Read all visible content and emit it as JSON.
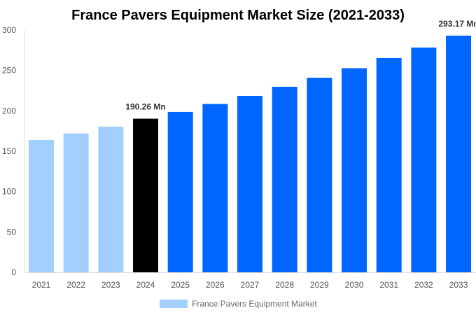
{
  "chart_data": {
    "type": "bar",
    "title": "France Pavers Equipment Market Size (2021-2033)",
    "xlabel": "",
    "ylabel": "",
    "ylim": [
      0,
      300
    ],
    "yticks": [
      0,
      50,
      100,
      150,
      200,
      250,
      300
    ],
    "grid": false,
    "categories": [
      "2021",
      "2022",
      "2023",
      "2024",
      "2025",
      "2026",
      "2027",
      "2028",
      "2029",
      "2030",
      "2031",
      "2032",
      "2033"
    ],
    "series": [
      {
        "name": "France Pavers Equipment Market",
        "values": [
          164,
          172,
          180.5,
          190.26,
          198.6,
          208.5,
          218.5,
          229.8,
          241,
          252.8,
          265.4,
          278.4,
          293.17
        ]
      }
    ],
    "bar_colors": [
      "#a3cfff",
      "#a3cfff",
      "#a3cfff",
      "#000000",
      "#0066ff",
      "#0066ff",
      "#0066ff",
      "#0066ff",
      "#0066ff",
      "#0066ff",
      "#0066ff",
      "#0066ff",
      "#0066ff"
    ],
    "data_labels": [
      {
        "category": "2024",
        "text": "190.26 Mn"
      },
      {
        "category": "2033",
        "text": "293.17 Mn"
      }
    ],
    "legend": {
      "position": "bottom",
      "label": "France Pavers Equipment Market",
      "color": "#a3cfff"
    }
  }
}
